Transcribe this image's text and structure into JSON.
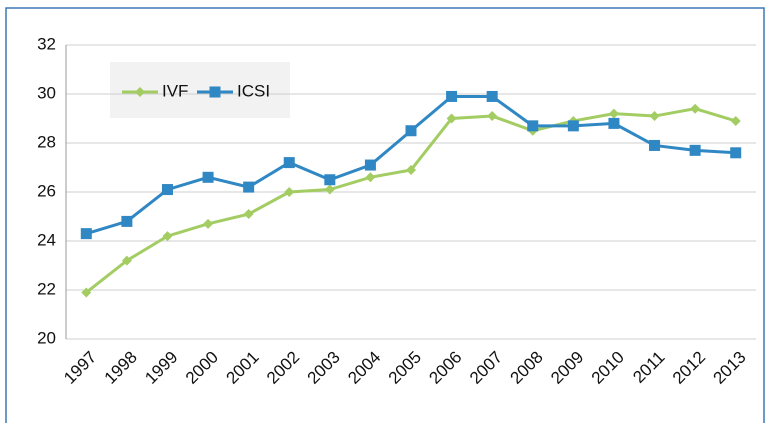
{
  "chart_data": {
    "type": "line",
    "categories": [
      "1997",
      "1998",
      "1999",
      "2000",
      "2001",
      "2002",
      "2003",
      "2004",
      "2005",
      "2006",
      "2007",
      "2008",
      "2009",
      "2010",
      "2011",
      "2012",
      "2013"
    ],
    "series": [
      {
        "name": "IVF",
        "color": "#a3cc63",
        "marker": "diamond",
        "values": [
          21.9,
          23.2,
          24.2,
          24.7,
          25.1,
          26.0,
          26.1,
          26.6,
          26.9,
          29.0,
          29.1,
          28.5,
          28.9,
          29.2,
          29.1,
          29.4,
          28.9
        ]
      },
      {
        "name": "ICSI",
        "color": "#2f87c4",
        "marker": "square",
        "values": [
          24.3,
          24.8,
          26.1,
          26.6,
          26.2,
          27.2,
          26.5,
          27.1,
          28.5,
          29.9,
          29.9,
          28.7,
          28.7,
          28.8,
          27.9,
          27.7,
          27.6
        ]
      }
    ],
    "ylim": [
      20,
      32
    ],
    "yticks": [
      20,
      22,
      24,
      26,
      28,
      30,
      32
    ],
    "grid": true,
    "legend": "top-left"
  }
}
